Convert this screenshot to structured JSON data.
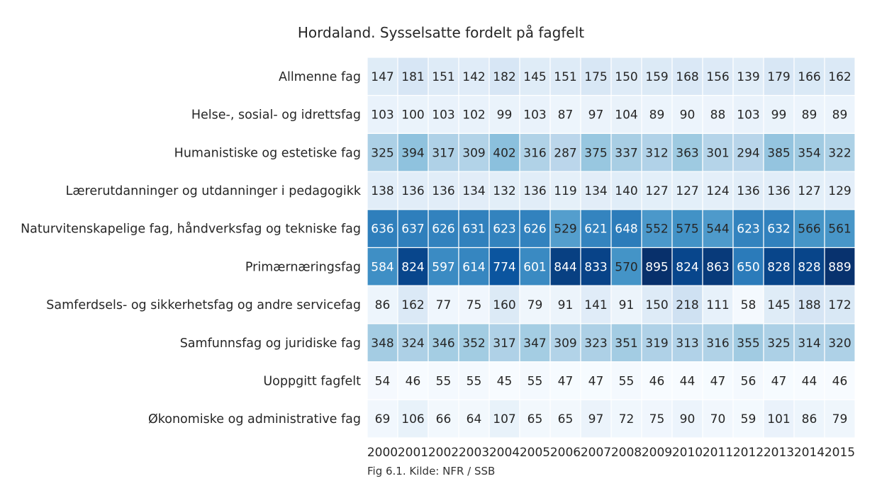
{
  "chart_data": {
    "type": "heatmap",
    "title": "Hordaland. Sysselsatte fordelt på fagfelt",
    "caption": "Fig 6.1. Kilde: NFR / SSB",
    "x": [
      "2000",
      "2001",
      "2002",
      "2003",
      "2004",
      "2005",
      "2006",
      "2007",
      "2008",
      "2009",
      "2010",
      "2011",
      "2012",
      "2013",
      "2014",
      "2015"
    ],
    "y": [
      "Allmenne fag",
      "Helse-, sosial- og idrettsfag",
      "Humanistiske og estetiske fag",
      "Lærerutdanninger og utdanninger i pedagogikk",
      "Naturvitenskapelige fag, håndverksfag og tekniske fag",
      "Primærnæringsfag",
      "Samferdsels- og sikkerhetsfag og andre servicefag",
      "Samfunnsfag og juridiske fag",
      "Uoppgitt fagfelt",
      "Økonomiske og administrative fag"
    ],
    "values": [
      [
        147,
        181,
        151,
        142,
        182,
        145,
        151,
        175,
        150,
        159,
        168,
        156,
        139,
        179,
        166,
        162
      ],
      [
        103,
        100,
        103,
        102,
        99,
        103,
        87,
        97,
        104,
        89,
        90,
        88,
        103,
        99,
        89,
        89
      ],
      [
        325,
        394,
        317,
        309,
        402,
        316,
        287,
        375,
        337,
        312,
        363,
        301,
        294,
        385,
        354,
        322
      ],
      [
        138,
        136,
        136,
        134,
        132,
        136,
        119,
        134,
        140,
        127,
        127,
        124,
        136,
        136,
        127,
        129
      ],
      [
        636,
        637,
        626,
        631,
        623,
        626,
        529,
        621,
        648,
        552,
        575,
        544,
        623,
        632,
        566,
        561
      ],
      [
        584,
        824,
        597,
        614,
        774,
        601,
        844,
        833,
        570,
        895,
        824,
        863,
        650,
        828,
        828,
        889
      ],
      [
        86,
        162,
        77,
        75,
        160,
        79,
        91,
        141,
        91,
        150,
        218,
        111,
        58,
        145,
        188,
        172
      ],
      [
        348,
        324,
        346,
        352,
        317,
        347,
        309,
        323,
        351,
        319,
        313,
        316,
        355,
        325,
        314,
        320
      ],
      [
        54,
        46,
        55,
        55,
        45,
        55,
        47,
        47,
        55,
        46,
        44,
        47,
        56,
        47,
        44,
        46
      ],
      [
        69,
        106,
        66,
        64,
        107,
        65,
        65,
        97,
        72,
        75,
        90,
        70,
        59,
        101,
        86,
        79
      ]
    ],
    "colormap": "Blues",
    "value_range": [
      44,
      895
    ],
    "annotate": true,
    "grid": false
  }
}
